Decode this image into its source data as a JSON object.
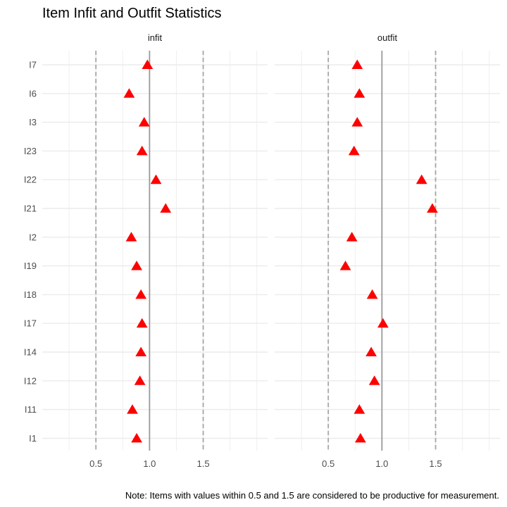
{
  "chart_data": {
    "type": "scatter",
    "title": "Item Infit and Outfit Statistics",
    "caption": "Note: Items with values within 0.5 and 1.5 are considered to be productive for measurement.",
    "items": [
      "I7",
      "I6",
      "I3",
      "I23",
      "I22",
      "I21",
      "I2",
      "I19",
      "I18",
      "I17",
      "I14",
      "I12",
      "I11",
      "I1"
    ],
    "x_ticks": [
      "0.5",
      "1.0",
      "1.5"
    ],
    "x_range": [
      0.0,
      2.1
    ],
    "reference_lines": {
      "solid": 1.0,
      "dashed": [
        0.5,
        1.5
      ]
    },
    "marker": {
      "shape": "triangle",
      "color": "#ff0000"
    },
    "colors": {
      "grid": "#ebebeb",
      "solid_line": "#999999",
      "dashed_line": "#a6a6a6"
    },
    "panels": [
      {
        "name": "infit",
        "values": [
          0.98,
          0.81,
          0.95,
          0.93,
          1.06,
          1.15,
          0.83,
          0.88,
          0.92,
          0.93,
          0.92,
          0.91,
          0.84,
          0.88
        ]
      },
      {
        "name": "outfit",
        "values": [
          0.77,
          0.79,
          0.77,
          0.74,
          1.37,
          1.47,
          0.72,
          0.66,
          0.91,
          1.01,
          0.9,
          0.93,
          0.79,
          0.8
        ]
      }
    ]
  }
}
